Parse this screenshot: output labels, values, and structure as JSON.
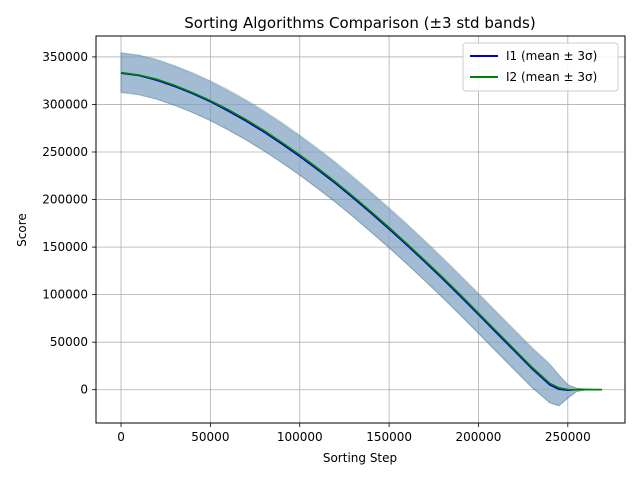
{
  "chart_data": {
    "type": "line",
    "title": "Sorting Algorithms Comparison (±3 std bands)",
    "xlabel": "Sorting Step",
    "ylabel": "Score",
    "xlim": [
      -14000,
      282000
    ],
    "ylim": [
      -35000,
      372000
    ],
    "grid": true,
    "legend_position": "top-right",
    "x_ticks": [
      0,
      50000,
      100000,
      150000,
      200000,
      250000
    ],
    "x_tick_labels": [
      "0",
      "50000",
      "100000",
      "150000",
      "200000",
      "250000"
    ],
    "y_ticks": [
      0,
      50000,
      100000,
      150000,
      200000,
      250000,
      300000,
      350000
    ],
    "y_tick_labels": [
      "0",
      "50000",
      "100000",
      "150000",
      "200000",
      "250000",
      "300000",
      "350000"
    ],
    "series": [
      {
        "name": "I1 (mean ± 3σ)",
        "color": "#0000cc",
        "band_color": "#6688aa",
        "x": [
          0,
          10000,
          20000,
          30000,
          40000,
          50000,
          60000,
          70000,
          80000,
          90000,
          100000,
          110000,
          120000,
          130000,
          140000,
          150000,
          160000,
          170000,
          180000,
          190000,
          200000,
          210000,
          220000,
          230000,
          240000,
          245000,
          250000,
          255000,
          260000,
          265000,
          269000
        ],
        "mean": [
          333000,
          330500,
          325500,
          319000,
          311500,
          303000,
          293000,
          282500,
          271000,
          258500,
          245500,
          231500,
          217000,
          201500,
          185500,
          169000,
          152000,
          134500,
          116500,
          98000,
          79000,
          60000,
          41000,
          22000,
          5000,
          500,
          -500,
          0,
          100,
          0,
          0
        ],
        "upper": [
          354000,
          351500,
          346500,
          340000,
          332500,
          324000,
          314000,
          303500,
          292000,
          279500,
          266500,
          252500,
          238000,
          222500,
          206500,
          190000,
          173000,
          155500,
          137500,
          119000,
          100000,
          81000,
          62000,
          43000,
          26000,
          15000,
          5000,
          1500,
          400,
          100,
          0
        ],
        "lower": [
          313000,
          310500,
          305500,
          299000,
          291500,
          283000,
          273000,
          262500,
          251000,
          238500,
          225500,
          211500,
          197000,
          181500,
          165500,
          149000,
          132000,
          114500,
          96500,
          78000,
          59000,
          40000,
          21000,
          2000,
          -14000,
          -17000,
          -9000,
          -2000,
          -300,
          -50,
          0
        ]
      },
      {
        "name": "I2 (mean ± 3σ)",
        "color": "#008000",
        "band_color": "#88aacc",
        "x": [
          0,
          10000,
          20000,
          30000,
          40000,
          50000,
          60000,
          70000,
          80000,
          90000,
          100000,
          110000,
          120000,
          130000,
          140000,
          150000,
          160000,
          170000,
          180000,
          190000,
          200000,
          210000,
          220000,
          230000,
          240000,
          245000,
          250000,
          255000,
          260000,
          265000,
          269000
        ],
        "mean": [
          333500,
          331000,
          326500,
          320000,
          312500,
          304000,
          294500,
          284000,
          272500,
          260000,
          247000,
          233000,
          218500,
          203000,
          187000,
          170500,
          153500,
          136000,
          118000,
          99500,
          80500,
          61500,
          42500,
          23500,
          6500,
          2000,
          200,
          0,
          100,
          0,
          0
        ],
        "upper": [
          354500,
          352000,
          347500,
          341000,
          333500,
          325000,
          315500,
          305000,
          293500,
          281000,
          268000,
          254000,
          239500,
          224000,
          208000,
          191500,
          174500,
          157000,
          139000,
          120500,
          101500,
          82500,
          63500,
          44500,
          27500,
          16000,
          5500,
          1700,
          500,
          100,
          0
        ],
        "lower": [
          312500,
          310000,
          305500,
          299000,
          291500,
          283000,
          273500,
          263000,
          251500,
          239000,
          226000,
          212000,
          197500,
          182000,
          166000,
          149500,
          132500,
          115000,
          97000,
          78500,
          59500,
          40500,
          21500,
          2500,
          -13500,
          -16500,
          -8500,
          -1800,
          -300,
          -50,
          0
        ]
      }
    ]
  }
}
